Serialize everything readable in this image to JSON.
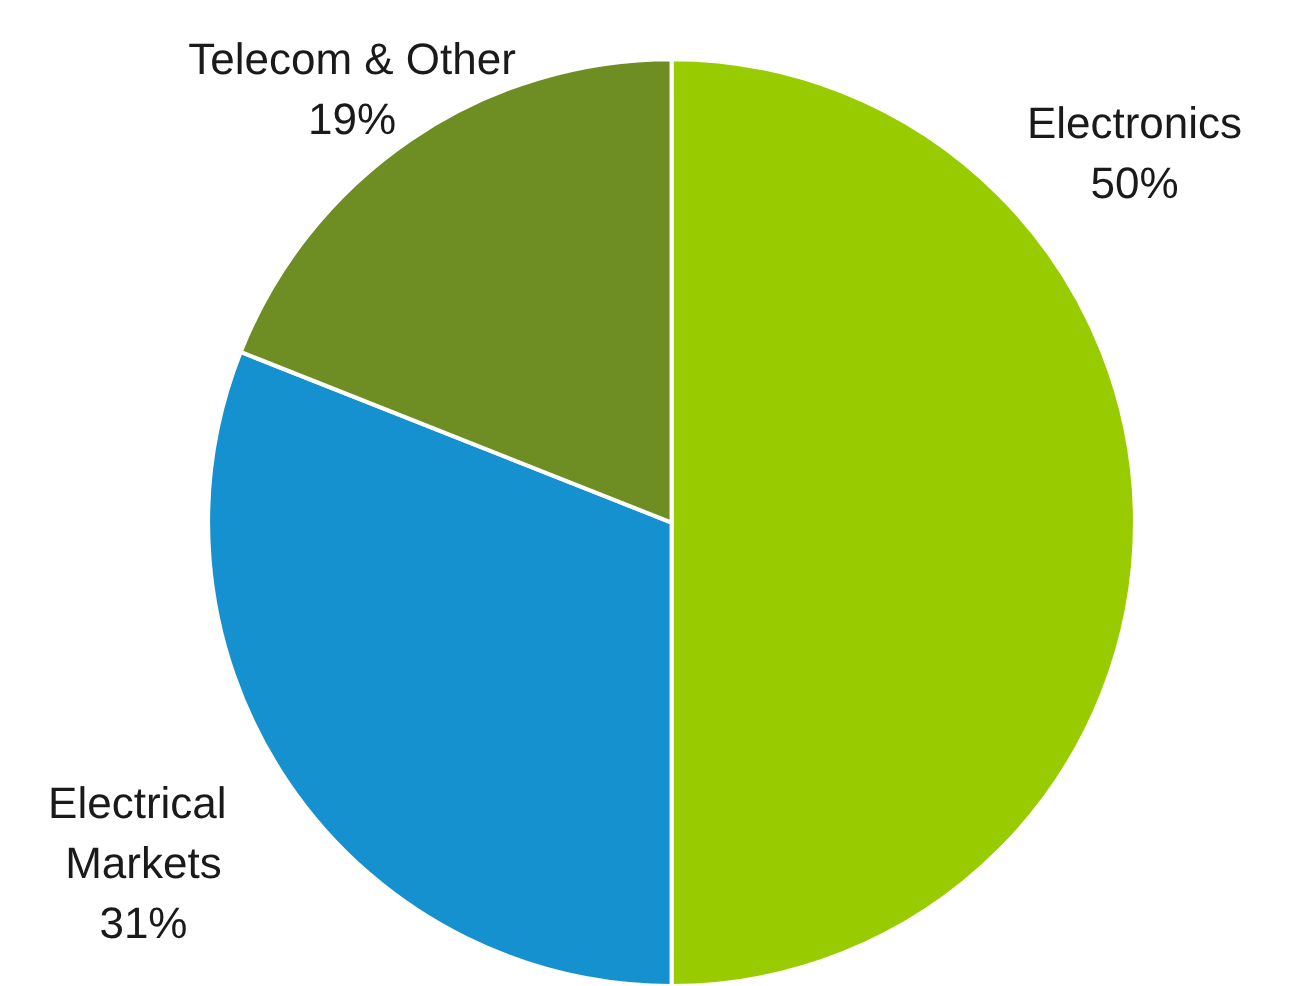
{
  "chart_data": {
    "type": "pie",
    "categories": [
      "Electronics",
      "Electrical Markets",
      "Telecom & Other"
    ],
    "values": [
      50,
      31,
      19
    ],
    "value_labels": [
      "50%",
      "31%",
      "19%"
    ],
    "colors": [
      "#99cc00",
      "#1591d0",
      "#6e8e24"
    ]
  }
}
